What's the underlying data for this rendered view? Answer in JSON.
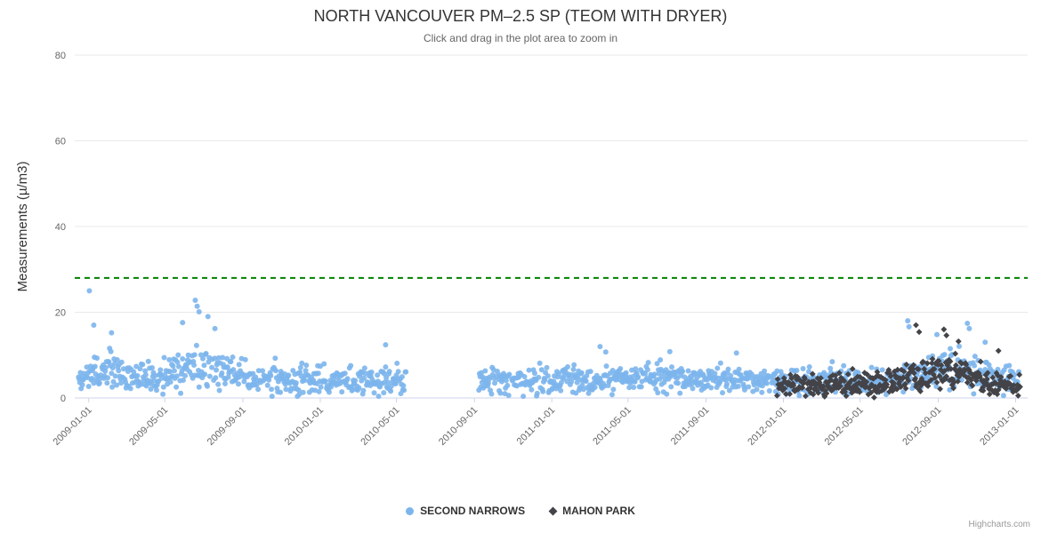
{
  "credits": "Highcharts.com",
  "colors": {
    "background": "#ffffff",
    "title": "#333333",
    "subtitle": "#666666",
    "axis_label": "#666666",
    "axis_title": "#333333",
    "grid": "#e9e9e9",
    "axis_line": "#ccd6eb",
    "legend_text": "#333333",
    "credits": "#999999"
  },
  "chart_data": {
    "type": "scatter",
    "title": "NORTH VANCOUVER PM–2.5 SP (TEOM WITH DRYER)",
    "subtitle": "Click and drag in the plot area to zoom in",
    "xlabel": "",
    "ylabel": "Measurements (µ/m3)",
    "ylim": [
      0,
      80
    ],
    "yticks": [
      0,
      20,
      40,
      60,
      80
    ],
    "x_min": "2008-12-10",
    "x_max": "2013-01-20",
    "xticks": [
      "2009-01-01",
      "2009-05-01",
      "2009-09-01",
      "2010-01-01",
      "2010-05-01",
      "2010-09-01",
      "2011-01-01",
      "2011-05-01",
      "2011-09-01",
      "2012-01-01",
      "2012-05-01",
      "2012-09-01",
      "2013-01-01"
    ],
    "grid": true,
    "legend_position": "bottom",
    "threshold_line": {
      "value": 28,
      "color": "#008000",
      "style": "dashed"
    },
    "series": [
      {
        "name": "SECOND NARROWS",
        "color": "#7cb5ec",
        "marker": "circle",
        "generation": {
          "seed": 7,
          "segments": [
            {
              "start": "2008-12-14",
              "end": "2010-05-16",
              "base": 4.2,
              "spread": 3.2,
              "min": 0.4,
              "cap": 11,
              "skip_chance": 0.08,
              "spike_chance": 0.04,
              "spike_amp": 4
            },
            {
              "start": "2010-09-08",
              "end": "2013-01-06",
              "base": 3.8,
              "spread": 3.0,
              "min": 0.4,
              "cap": 10,
              "skip_chance": 0.08,
              "spike_chance": 0.03,
              "spike_amp": 3.5
            }
          ],
          "bumps": [
            {
              "center": "2009-06-25",
              "width_days": 55,
              "amp": 7
            },
            {
              "center": "2009-02-01",
              "width_days": 35,
              "amp": 3
            },
            {
              "center": "2012-09-25",
              "width_days": 70,
              "amp": 5.5
            },
            {
              "center": "2011-06-15",
              "width_days": 120,
              "amp": 2
            }
          ]
        },
        "highlight_points": [
          [
            "2009-01-02",
            25.0
          ],
          [
            "2009-01-09",
            17.0
          ],
          [
            "2009-02-06",
            15.2
          ],
          [
            "2009-05-29",
            17.6
          ],
          [
            "2009-06-18",
            22.8
          ],
          [
            "2009-06-21",
            21.4
          ],
          [
            "2009-06-24",
            20.1
          ],
          [
            "2009-07-08",
            19.0
          ],
          [
            "2009-07-19",
            16.2
          ],
          [
            "2010-04-14",
            12.4
          ],
          [
            "2011-03-18",
            12.0
          ],
          [
            "2011-07-06",
            10.8
          ],
          [
            "2012-07-15",
            18.0
          ],
          [
            "2012-07-17",
            16.6
          ],
          [
            "2012-08-30",
            14.8
          ],
          [
            "2012-10-17",
            17.4
          ],
          [
            "2012-10-20",
            16.2
          ],
          [
            "2012-11-14",
            13.0
          ]
        ]
      },
      {
        "name": "MAHON PARK",
        "color": "#434348",
        "marker": "diamond",
        "generation": {
          "seed": 13,
          "segments": [
            {
              "start": "2011-12-22",
              "end": "2013-01-08",
              "base": 3.0,
              "spread": 2.4,
              "min": 0.1,
              "cap": 8,
              "skip_chance": 0.06,
              "spike_chance": 0.03,
              "spike_amp": 3
            }
          ],
          "bumps": [
            {
              "center": "2012-08-20",
              "width_days": 55,
              "amp": 6
            },
            {
              "center": "2012-10-25",
              "width_days": 30,
              "amp": 3
            }
          ]
        },
        "highlight_points": [
          [
            "2012-07-28",
            17.0
          ],
          [
            "2012-08-02",
            15.4
          ],
          [
            "2012-09-10",
            16.0
          ],
          [
            "2012-09-14",
            14.6
          ],
          [
            "2012-10-03",
            13.2
          ],
          [
            "2012-12-05",
            11.0
          ]
        ]
      }
    ]
  }
}
